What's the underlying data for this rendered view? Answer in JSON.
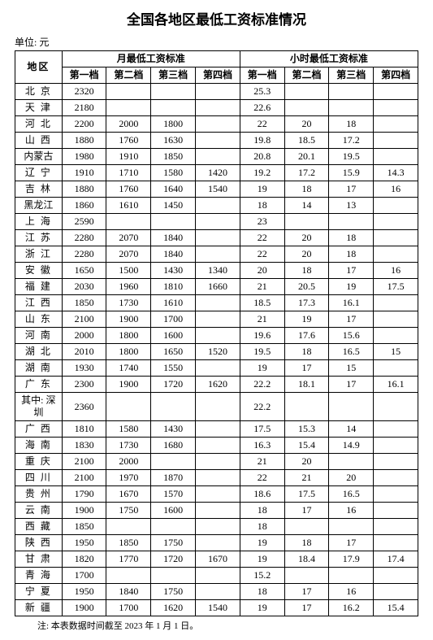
{
  "title": "全国各地区最低工资标准情况",
  "unit": "单位: 元",
  "columns": {
    "region": "地区",
    "monthly_group": "月最低工资标准",
    "hourly_group": "小时最低工资标准",
    "tier1": "第一档",
    "tier2": "第二档",
    "tier3": "第三档",
    "tier4": "第四档"
  },
  "rows": [
    {
      "region": "北 京",
      "m1": "2320",
      "m2": "",
      "m3": "",
      "m4": "",
      "h1": "25.3",
      "h2": "",
      "h3": "",
      "h4": ""
    },
    {
      "region": "天 津",
      "m1": "2180",
      "m2": "",
      "m3": "",
      "m4": "",
      "h1": "22.6",
      "h2": "",
      "h3": "",
      "h4": ""
    },
    {
      "region": "河 北",
      "m1": "2200",
      "m2": "2000",
      "m3": "1800",
      "m4": "",
      "h1": "22",
      "h2": "20",
      "h3": "18",
      "h4": ""
    },
    {
      "region": "山 西",
      "m1": "1880",
      "m2": "1760",
      "m3": "1630",
      "m4": "",
      "h1": "19.8",
      "h2": "18.5",
      "h3": "17.2",
      "h4": ""
    },
    {
      "region": "内蒙古",
      "m1": "1980",
      "m2": "1910",
      "m3": "1850",
      "m4": "",
      "h1": "20.8",
      "h2": "20.1",
      "h3": "19.5",
      "h4": "",
      "tight": true
    },
    {
      "region": "辽 宁",
      "m1": "1910",
      "m2": "1710",
      "m3": "1580",
      "m4": "1420",
      "h1": "19.2",
      "h2": "17.2",
      "h3": "15.9",
      "h4": "14.3"
    },
    {
      "region": "吉 林",
      "m1": "1880",
      "m2": "1760",
      "m3": "1640",
      "m4": "1540",
      "h1": "19",
      "h2": "18",
      "h3": "17",
      "h4": "16"
    },
    {
      "region": "黑龙江",
      "m1": "1860",
      "m2": "1610",
      "m3": "1450",
      "m4": "",
      "h1": "18",
      "h2": "14",
      "h3": "13",
      "h4": "",
      "tight": true
    },
    {
      "region": "上 海",
      "m1": "2590",
      "m2": "",
      "m3": "",
      "m4": "",
      "h1": "23",
      "h2": "",
      "h3": "",
      "h4": ""
    },
    {
      "region": "江 苏",
      "m1": "2280",
      "m2": "2070",
      "m3": "1840",
      "m4": "",
      "h1": "22",
      "h2": "20",
      "h3": "18",
      "h4": ""
    },
    {
      "region": "浙 江",
      "m1": "2280",
      "m2": "2070",
      "m3": "1840",
      "m4": "",
      "h1": "22",
      "h2": "20",
      "h3": "18",
      "h4": ""
    },
    {
      "region": "安 徽",
      "m1": "1650",
      "m2": "1500",
      "m3": "1430",
      "m4": "1340",
      "h1": "20",
      "h2": "18",
      "h3": "17",
      "h4": "16"
    },
    {
      "region": "福 建",
      "m1": "2030",
      "m2": "1960",
      "m3": "1810",
      "m4": "1660",
      "h1": "21",
      "h2": "20.5",
      "h3": "19",
      "h4": "17.5"
    },
    {
      "region": "江 西",
      "m1": "1850",
      "m2": "1730",
      "m3": "1610",
      "m4": "",
      "h1": "18.5",
      "h2": "17.3",
      "h3": "16.1",
      "h4": ""
    },
    {
      "region": "山 东",
      "m1": "2100",
      "m2": "1900",
      "m3": "1700",
      "m4": "",
      "h1": "21",
      "h2": "19",
      "h3": "17",
      "h4": ""
    },
    {
      "region": "河 南",
      "m1": "2000",
      "m2": "1800",
      "m3": "1600",
      "m4": "",
      "h1": "19.6",
      "h2": "17.6",
      "h3": "15.6",
      "h4": ""
    },
    {
      "region": "湖 北",
      "m1": "2010",
      "m2": "1800",
      "m3": "1650",
      "m4": "1520",
      "h1": "19.5",
      "h2": "18",
      "h3": "16.5",
      "h4": "15"
    },
    {
      "region": "湖 南",
      "m1": "1930",
      "m2": "1740",
      "m3": "1550",
      "m4": "",
      "h1": "19",
      "h2": "17",
      "h3": "15",
      "h4": ""
    },
    {
      "region": "广 东",
      "m1": "2300",
      "m2": "1900",
      "m3": "1720",
      "m4": "1620",
      "h1": "22.2",
      "h2": "18.1",
      "h3": "17",
      "h4": "16.1"
    },
    {
      "region": "其中: 深圳",
      "m1": "2360",
      "m2": "",
      "m3": "",
      "m4": "",
      "h1": "22.2",
      "h2": "",
      "h3": "",
      "h4": "",
      "tight": true
    },
    {
      "region": "广 西",
      "m1": "1810",
      "m2": "1580",
      "m3": "1430",
      "m4": "",
      "h1": "17.5",
      "h2": "15.3",
      "h3": "14",
      "h4": ""
    },
    {
      "region": "海 南",
      "m1": "1830",
      "m2": "1730",
      "m3": "1680",
      "m4": "",
      "h1": "16.3",
      "h2": "15.4",
      "h3": "14.9",
      "h4": ""
    },
    {
      "region": "重 庆",
      "m1": "2100",
      "m2": "2000",
      "m3": "",
      "m4": "",
      "h1": "21",
      "h2": "20",
      "h3": "",
      "h4": ""
    },
    {
      "region": "四 川",
      "m1": "2100",
      "m2": "1970",
      "m3": "1870",
      "m4": "",
      "h1": "22",
      "h2": "21",
      "h3": "20",
      "h4": ""
    },
    {
      "region": "贵 州",
      "m1": "1790",
      "m2": "1670",
      "m3": "1570",
      "m4": "",
      "h1": "18.6",
      "h2": "17.5",
      "h3": "16.5",
      "h4": ""
    },
    {
      "region": "云 南",
      "m1": "1900",
      "m2": "1750",
      "m3": "1600",
      "m4": "",
      "h1": "18",
      "h2": "17",
      "h3": "16",
      "h4": ""
    },
    {
      "region": "西 藏",
      "m1": "1850",
      "m2": "",
      "m3": "",
      "m4": "",
      "h1": "18",
      "h2": "",
      "h3": "",
      "h4": ""
    },
    {
      "region": "陕 西",
      "m1": "1950",
      "m2": "1850",
      "m3": "1750",
      "m4": "",
      "h1": "19",
      "h2": "18",
      "h3": "17",
      "h4": ""
    },
    {
      "region": "甘 肃",
      "m1": "1820",
      "m2": "1770",
      "m3": "1720",
      "m4": "1670",
      "h1": "19",
      "h2": "18.4",
      "h3": "17.9",
      "h4": "17.4"
    },
    {
      "region": "青 海",
      "m1": "1700",
      "m2": "",
      "m3": "",
      "m4": "",
      "h1": "15.2",
      "h2": "",
      "h3": "",
      "h4": ""
    },
    {
      "region": "宁 夏",
      "m1": "1950",
      "m2": "1840",
      "m3": "1750",
      "m4": "",
      "h1": "18",
      "h2": "17",
      "h3": "16",
      "h4": ""
    },
    {
      "region": "新 疆",
      "m1": "1900",
      "m2": "1700",
      "m3": "1620",
      "m4": "1540",
      "h1": "19",
      "h2": "17",
      "h3": "16.2",
      "h4": "15.4"
    }
  ],
  "footnote": "注: 本表数据时间截至 2023 年 1 月 1 日。"
}
